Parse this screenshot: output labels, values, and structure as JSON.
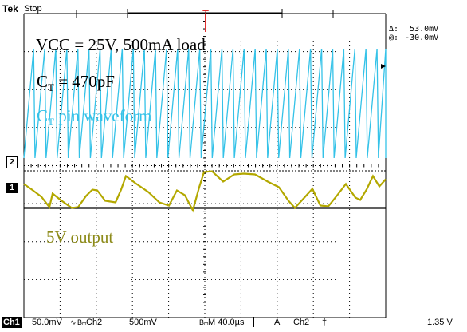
{
  "header": {
    "brand": "Tek",
    "run_state": "Stop",
    "cursor_delta_symbol": "Δ:",
    "cursor_delta_value": "53.0mV",
    "cursor_at_symbol": "@:",
    "cursor_at_value": "-30.0mV",
    "trigger_marker": "T"
  },
  "annotations": {
    "conditions": "VCC = 25V, 500mA load",
    "ct_label_main": "C",
    "ct_label_sub": "T",
    "ct_label_rest": " = 470pF",
    "ct_wave_main": "C",
    "ct_wave_sub": "T",
    "ct_wave_rest": " pin waveform",
    "output_label": "5V output"
  },
  "markers": {
    "ch2_marker": "2",
    "ch1_marker": "1"
  },
  "status_bar": {
    "ch1_label": "Ch1",
    "ch1_scale": "50.0mV",
    "ch1_coupling_icon": "∿",
    "ch1_bw_icon": "Bₘ",
    "ch2_label": "Ch2",
    "ch2_scale": "500mV",
    "ch2_bw_icon": "Bₘ",
    "timebase": "M 40.0µs",
    "trigger_mode": "A",
    "trigger_source": "Ch2",
    "trigger_slope_icon": "†",
    "trigger_level": "1.35 V"
  },
  "colors": {
    "ch1_trace": "#b3a800",
    "ch2_trace": "#34c2e8",
    "trigger": "#e03030",
    "grid": "#000000",
    "annotation_text": "#000000",
    "ch2_annotation": "#34c2e8",
    "ch1_annotation": "#8c8a18"
  },
  "chart_data": {
    "type": "line",
    "series": [
      {
        "name": "CT pin waveform",
        "shape": "sawtooth"
      },
      {
        "name": "5V output",
        "shape": "ripple"
      }
    ]
  }
}
